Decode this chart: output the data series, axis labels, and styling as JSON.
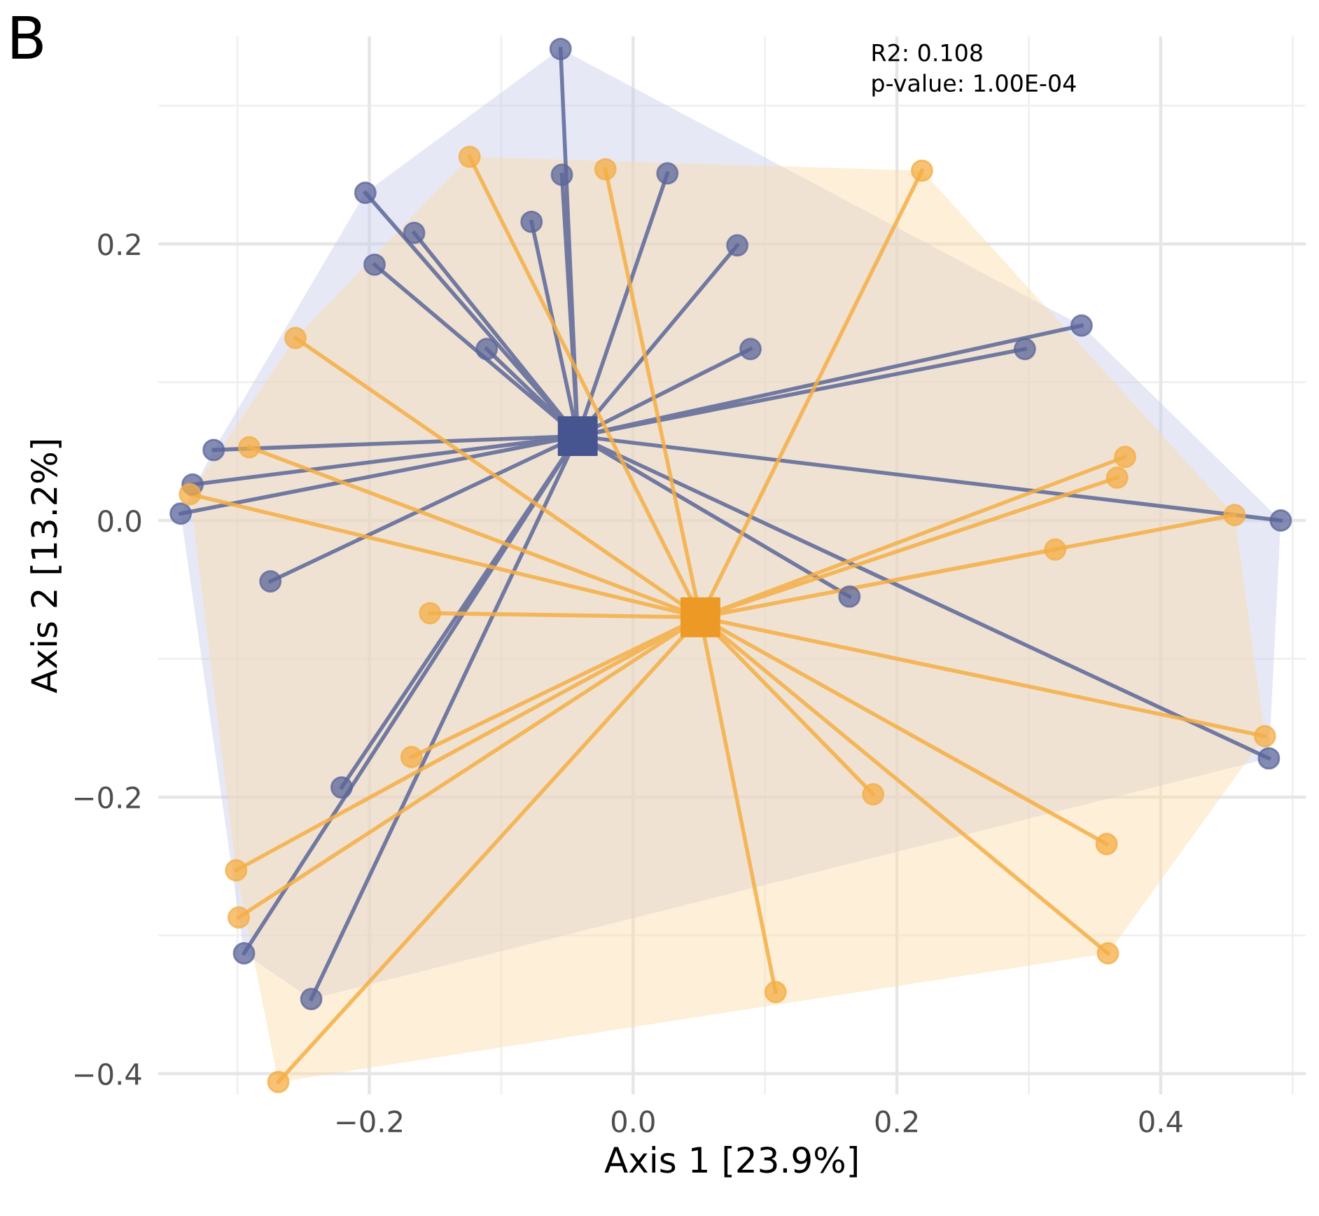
{
  "chart_data": {
    "type": "scatter",
    "xlabel": "Axis 1 [23.9%]",
    "ylabel": "Axis 2 [13.2%]",
    "annotations": [
      "B",
      "R2: 0.108",
      "p-value: 1.00E-04"
    ],
    "xlim": [
      -0.36,
      0.51
    ],
    "ylim": [
      -0.415,
      0.35
    ],
    "xticks": [
      {
        "value": -0.2,
        "label": "−0.2"
      },
      {
        "value": 0.0,
        "label": "0.0"
      },
      {
        "value": 0.2,
        "label": "0.2"
      },
      {
        "value": 0.4,
        "label": "0.4"
      }
    ],
    "yticks": [
      {
        "value": -0.4,
        "label": "−0.4"
      },
      {
        "value": -0.2,
        "label": "−0.2"
      },
      {
        "value": 0.0,
        "label": "0.0"
      },
      {
        "value": 0.2,
        "label": "0.2"
      }
    ],
    "grid": true,
    "legend": false,
    "series": [
      {
        "type": "area",
        "color": "#c9cde8",
        "x": [
          -0.343,
          -0.318,
          -0.203,
          -0.055,
          0.34,
          0.491,
          0.482,
          -0.244,
          -0.295
        ],
        "values": [
          0.005,
          0.051,
          0.237,
          0.341,
          0.141,
          0.0,
          -0.172,
          -0.346,
          -0.313
        ]
      },
      {
        "type": "area",
        "color": "#fbdca8",
        "x": [
          -0.336,
          -0.256,
          -0.124,
          0.219,
          0.456,
          0.479,
          0.36,
          -0.269,
          -0.301
        ],
        "values": [
          0.019,
          0.132,
          0.263,
          0.253,
          0.004,
          -0.156,
          -0.313,
          -0.406,
          -0.253
        ]
      },
      {
        "type": "line",
        "color": "#5b6699",
        "marker": "none",
        "x": [
          -0.042,
          -0.055,
          null,
          -0.042,
          -0.054,
          null,
          -0.042,
          0.026,
          null,
          -0.042,
          -0.203,
          null,
          -0.042,
          -0.166,
          null,
          -0.042,
          -0.077,
          null,
          -0.042,
          0.079,
          null,
          -0.042,
          -0.196,
          null,
          -0.042,
          -0.111,
          null,
          -0.042,
          0.089,
          null,
          -0.042,
          0.297,
          null,
          -0.042,
          0.34,
          null,
          -0.042,
          -0.318,
          null,
          -0.042,
          -0.334,
          null,
          -0.042,
          -0.343,
          null,
          -0.042,
          0.491,
          null,
          -0.042,
          -0.275,
          null,
          -0.042,
          0.164,
          null,
          -0.042,
          0.482,
          null,
          -0.042,
          -0.221,
          null,
          -0.042,
          -0.295,
          null,
          -0.042,
          -0.244
        ],
        "values": [
          0.061,
          0.341,
          null,
          0.061,
          0.25,
          null,
          0.061,
          0.251,
          null,
          0.061,
          0.237,
          null,
          0.061,
          0.208,
          null,
          0.061,
          0.216,
          null,
          0.061,
          0.199,
          null,
          0.061,
          0.185,
          null,
          0.061,
          0.124,
          null,
          0.061,
          0.124,
          null,
          0.061,
          0.124,
          null,
          0.061,
          0.141,
          null,
          0.061,
          0.051,
          null,
          0.061,
          0.026,
          null,
          0.061,
          0.005,
          null,
          0.061,
          0.0,
          null,
          0.061,
          -0.044,
          null,
          0.061,
          -0.055,
          null,
          0.061,
          -0.172,
          null,
          0.061,
          -0.193,
          null,
          0.061,
          -0.313,
          null,
          0.061,
          -0.346
        ]
      },
      {
        "type": "line",
        "color": "#f4ae45",
        "marker": "none",
        "x": [
          0.051,
          -0.124,
          null,
          0.051,
          -0.021,
          null,
          0.051,
          0.219,
          null,
          0.051,
          -0.256,
          null,
          0.051,
          -0.291,
          null,
          0.051,
          -0.336,
          null,
          0.051,
          0.373,
          null,
          0.051,
          0.367,
          null,
          0.051,
          0.456,
          null,
          0.051,
          0.32,
          null,
          0.051,
          -0.154,
          null,
          0.051,
          0.479,
          null,
          0.051,
          -0.168,
          null,
          0.051,
          0.182,
          null,
          0.051,
          0.359,
          null,
          0.051,
          -0.301,
          null,
          0.051,
          -0.299,
          null,
          0.051,
          0.36,
          null,
          0.051,
          0.108,
          null,
          0.051,
          -0.269
        ],
        "values": [
          -0.07,
          0.263,
          null,
          -0.07,
          0.254,
          null,
          -0.07,
          0.253,
          null,
          -0.07,
          0.132,
          null,
          -0.07,
          0.053,
          null,
          -0.07,
          0.019,
          null,
          -0.07,
          0.046,
          null,
          -0.07,
          0.031,
          null,
          -0.07,
          0.004,
          null,
          -0.07,
          -0.021,
          null,
          -0.07,
          -0.067,
          null,
          -0.07,
          -0.156,
          null,
          -0.07,
          -0.171,
          null,
          -0.07,
          -0.198,
          null,
          -0.07,
          -0.234,
          null,
          -0.07,
          -0.253,
          null,
          -0.07,
          -0.287,
          null,
          -0.07,
          -0.313,
          null,
          -0.07,
          -0.341,
          null,
          -0.07,
          -0.406
        ]
      },
      {
        "color": "#5b6699",
        "marker": "circle",
        "x": [
          -0.055,
          -0.054,
          0.026,
          -0.203,
          -0.166,
          -0.077,
          0.079,
          -0.196,
          -0.111,
          0.089,
          0.297,
          0.34,
          -0.318,
          -0.334,
          -0.343,
          0.491,
          -0.275,
          0.164,
          0.482,
          -0.221,
          -0.295,
          -0.244
        ],
        "values": [
          0.341,
          0.25,
          0.251,
          0.237,
          0.208,
          0.216,
          0.199,
          0.185,
          0.124,
          0.124,
          0.124,
          0.141,
          0.051,
          0.026,
          0.005,
          0.0,
          -0.044,
          -0.055,
          -0.172,
          -0.193,
          -0.313,
          -0.346
        ]
      },
      {
        "color": "#f4ae45",
        "marker": "circle",
        "x": [
          -0.124,
          -0.021,
          0.219,
          -0.256,
          -0.291,
          -0.336,
          0.373,
          0.367,
          0.456,
          0.32,
          -0.154,
          0.479,
          -0.168,
          0.182,
          0.359,
          -0.301,
          -0.299,
          0.36,
          0.108,
          -0.269
        ],
        "values": [
          0.263,
          0.254,
          0.253,
          0.132,
          0.053,
          0.019,
          0.046,
          0.031,
          0.004,
          -0.021,
          -0.067,
          -0.156,
          -0.171,
          -0.198,
          -0.234,
          -0.253,
          -0.287,
          -0.313,
          -0.341,
          -0.406
        ]
      },
      {
        "color": "#46548f",
        "marker": "square",
        "x": [
          -0.042
        ],
        "values": [
          0.061
        ]
      },
      {
        "color": "#ec9a25",
        "marker": "square",
        "x": [
          0.051
        ],
        "values": [
          -0.07
        ]
      }
    ]
  }
}
